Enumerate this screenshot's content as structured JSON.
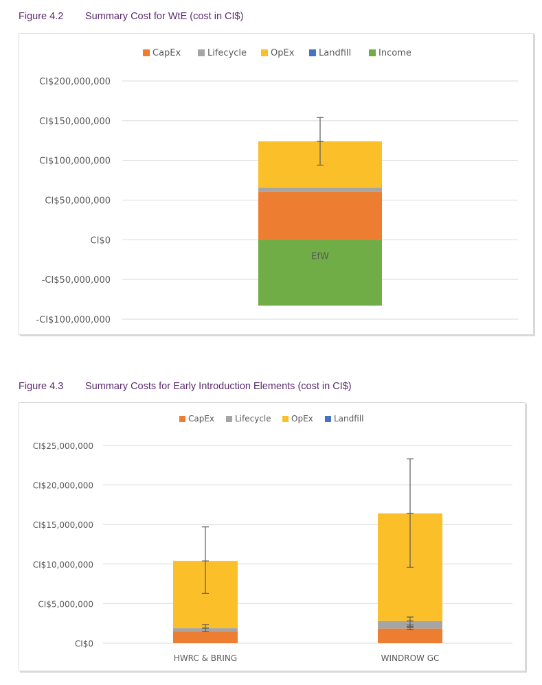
{
  "figures": [
    {
      "number": "Figure 4.2",
      "title": "Summary Cost for WtE (cost in CI$)"
    },
    {
      "number": "Figure 4.3",
      "title": "Summary Costs for Early Introduction Elements (cost in CI$)"
    }
  ],
  "colors": {
    "CapEx": "#ed7d31",
    "Lifecycle": "#a5a5a5",
    "OpEx": "#fbbf29",
    "Landfill": "#4472c4",
    "Income": "#70ad47",
    "grid": "#d9d9d9",
    "errorbar": "#595959"
  },
  "chart_data": [
    {
      "type": "bar",
      "stacked": true,
      "title": "Summary Cost for WtE (cost in CI$)",
      "categories": [
        "EfW"
      ],
      "category_label_position": "inside-bar",
      "legend": [
        "CapEx",
        "Lifecycle",
        "OpEx",
        "Landfill",
        "Income"
      ],
      "legend_position": "top",
      "series": [
        {
          "name": "CapEx",
          "values": [
            60000000
          ]
        },
        {
          "name": "Lifecycle",
          "values": [
            5500000
          ]
        },
        {
          "name": "OpEx",
          "values": [
            58500000
          ]
        },
        {
          "name": "Landfill",
          "values": [
            0
          ]
        },
        {
          "name": "Income",
          "values": [
            -83000000
          ]
        }
      ],
      "error_bars": [
        {
          "category": "EfW",
          "center": 124000000,
          "low": 94000000,
          "high": 154000000
        }
      ],
      "yticks": [
        200000000,
        150000000,
        100000000,
        50000000,
        0,
        -50000000,
        -100000000
      ],
      "ytick_labels": [
        "CI$200,000,000",
        "CI$150,000,000",
        "CI$100,000,000",
        "CI$50,000,000",
        "CI$0",
        "-CI$50,000,000",
        "-CI$100,000,000"
      ],
      "ylim": [
        -100000000,
        200000000
      ],
      "xlabel": "",
      "ylabel": "",
      "grid": true
    },
    {
      "type": "bar",
      "stacked": true,
      "title": "Summary Costs for Early Introduction Elements (cost in CI$)",
      "categories": [
        "HWRC & BRING",
        "WINDROW GC"
      ],
      "legend": [
        "CapEx",
        "Lifecycle",
        "OpEx",
        "Landfill"
      ],
      "legend_position": "top",
      "series": [
        {
          "name": "CapEx",
          "values": [
            1500000,
            1850000
          ]
        },
        {
          "name": "Lifecycle",
          "values": [
            400000,
            950000
          ]
        },
        {
          "name": "OpEx",
          "values": [
            8500000,
            13600000
          ]
        },
        {
          "name": "Landfill",
          "values": [
            0,
            0
          ]
        }
      ],
      "error_bars": [
        {
          "category": "HWRC & BRING",
          "center": 10400000,
          "low": 6300000,
          "high": 14700000
        },
        {
          "category": "HWRC & BRING",
          "center": 1900000,
          "low": 1450000,
          "high": 2350000
        },
        {
          "category": "WINDROW GC",
          "center": 16400000,
          "low": 9600000,
          "high": 23300000
        },
        {
          "category": "WINDROW GC",
          "center": 2800000,
          "low": 2000000,
          "high": 3300000
        },
        {
          "category": "WINDROW GC",
          "center": 2100000,
          "low": 1700000,
          "high": 2300000
        }
      ],
      "yticks": [
        25000000,
        20000000,
        15000000,
        10000000,
        5000000,
        0
      ],
      "ytick_labels": [
        "CI$25,000,000",
        "CI$20,000,000",
        "CI$15,000,000",
        "CI$10,000,000",
        "CI$5,000,000",
        "CI$0"
      ],
      "ylim": [
        0,
        25000000
      ],
      "xlabel": "",
      "ylabel": "",
      "grid": true
    }
  ]
}
